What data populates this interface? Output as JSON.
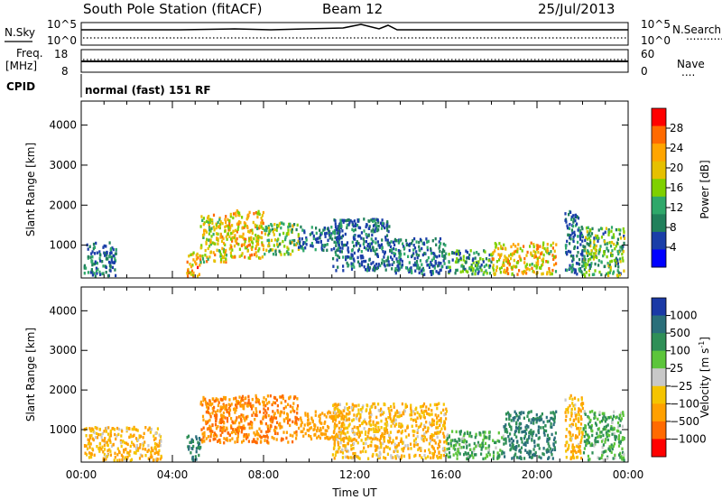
{
  "header": {
    "station": "South Pole Station (fitACF)",
    "beam": "Beam 12",
    "date": "25/Jul/2013"
  },
  "panels": {
    "nsky": {
      "left_label": "N.Sky",
      "left_ticks": [
        "10^5",
        "10^0"
      ],
      "right_ticks": [
        "10^5",
        "10^0"
      ],
      "right_label": "N.Search",
      "right_legend_line": "............"
    },
    "freq": {
      "left_label_1": "Freq.",
      "left_label_2": "[MHz]",
      "left_ticks": [
        "18",
        "8"
      ],
      "right_ticks": [
        "60",
        "0"
      ],
      "right_label": "Nave",
      "right_legend_line": "...."
    },
    "cpid": {
      "label": "CPID",
      "text": "normal (fast) 151 RF"
    }
  },
  "axes": {
    "xlabel": "Time UT",
    "xticks": [
      "00:00",
      "04:00",
      "08:00",
      "12:00",
      "16:00",
      "20:00",
      "00:00"
    ],
    "ylabel": "Slant Range [km]",
    "yticks": [
      "4000",
      "3000",
      "2000",
      "1000"
    ]
  },
  "colorbars": {
    "power": {
      "label": "Power [dB]",
      "ticks": [
        "28",
        "24",
        "20",
        "16",
        "12",
        "8",
        "4"
      ],
      "colors": [
        "#ff0000",
        "#ff6a00",
        "#ffa500",
        "#e6c000",
        "#7fd000",
        "#2fa86a",
        "#21805b",
        "#1a3ea8",
        "#0000ff"
      ]
    },
    "velocity": {
      "label": "Velocity [m s",
      "label_superscript": "-1",
      "label_close": "]",
      "ticks": [
        "1000",
        "500",
        "100",
        "25",
        "−25",
        "−100",
        "−500",
        "−1000"
      ],
      "colors": [
        "#1b3aa6",
        "#2a6f7a",
        "#2f8f57",
        "#5cc53a",
        "#c8c8c8",
        "#f5c400",
        "#ffa000",
        "#ff6a00",
        "#ff0000"
      ]
    }
  },
  "chart_data": [
    {
      "type": "heatmap",
      "name": "power",
      "x_units": "hours UT",
      "y_units": "km",
      "xlim": [
        0,
        24
      ],
      "ylim": [
        180,
        4600
      ],
      "blobs": [
        {
          "t0": 0.1,
          "t1": 1.5,
          "r0": 250,
          "r1": 1100,
          "value": 6
        },
        {
          "t0": 4.6,
          "t1": 5.2,
          "r0": 250,
          "r1": 900,
          "value": 22
        },
        {
          "t0": 5.2,
          "t1": 6.4,
          "r0": 600,
          "r1": 1800,
          "value": 18
        },
        {
          "t0": 6.4,
          "t1": 8.0,
          "r0": 700,
          "r1": 1900,
          "value": 20
        },
        {
          "t0": 8.0,
          "t1": 9.5,
          "r0": 800,
          "r1": 1600,
          "value": 14
        },
        {
          "t0": 9.5,
          "t1": 11.5,
          "r0": 900,
          "r1": 1500,
          "value": 6
        },
        {
          "t0": 11.0,
          "t1": 13.5,
          "r0": 400,
          "r1": 1700,
          "value": 5
        },
        {
          "t0": 13.5,
          "t1": 16.0,
          "r0": 300,
          "r1": 1200,
          "value": 6
        },
        {
          "t0": 16.0,
          "t1": 18.0,
          "r0": 300,
          "r1": 900,
          "value": 10
        },
        {
          "t0": 18.0,
          "t1": 20.8,
          "r0": 300,
          "r1": 1100,
          "value": 20
        },
        {
          "t0": 21.2,
          "t1": 22.0,
          "r0": 300,
          "r1": 1900,
          "value": 5
        },
        {
          "t0": 22.0,
          "t1": 23.8,
          "r0": 250,
          "r1": 1500,
          "value": 12
        }
      ]
    },
    {
      "type": "heatmap",
      "name": "velocity",
      "x_units": "hours UT",
      "y_units": "km",
      "xlim": [
        0,
        24
      ],
      "ylim": [
        180,
        4600
      ],
      "blobs": [
        {
          "t0": 0.1,
          "t1": 3.5,
          "r0": 250,
          "r1": 1100,
          "value": -100
        },
        {
          "t0": 4.6,
          "t1": 5.2,
          "r0": 250,
          "r1": 900,
          "value": 500
        },
        {
          "t0": 5.2,
          "t1": 9.5,
          "r0": 700,
          "r1": 1900,
          "value": -500
        },
        {
          "t0": 9.5,
          "t1": 11.5,
          "r0": 800,
          "r1": 1500,
          "value": -300
        },
        {
          "t0": 11.0,
          "t1": 16.0,
          "r0": 300,
          "r1": 1700,
          "value": -100
        },
        {
          "t0": 16.0,
          "t1": 18.5,
          "r0": 300,
          "r1": 1000,
          "value": 100
        },
        {
          "t0": 18.5,
          "t1": 20.8,
          "r0": 300,
          "r1": 1500,
          "value": 500
        },
        {
          "t0": 21.2,
          "t1": 22.0,
          "r0": 300,
          "r1": 1900,
          "value": -100
        },
        {
          "t0": 22.0,
          "t1": 23.8,
          "r0": 250,
          "r1": 1500,
          "value": 100
        }
      ]
    }
  ]
}
